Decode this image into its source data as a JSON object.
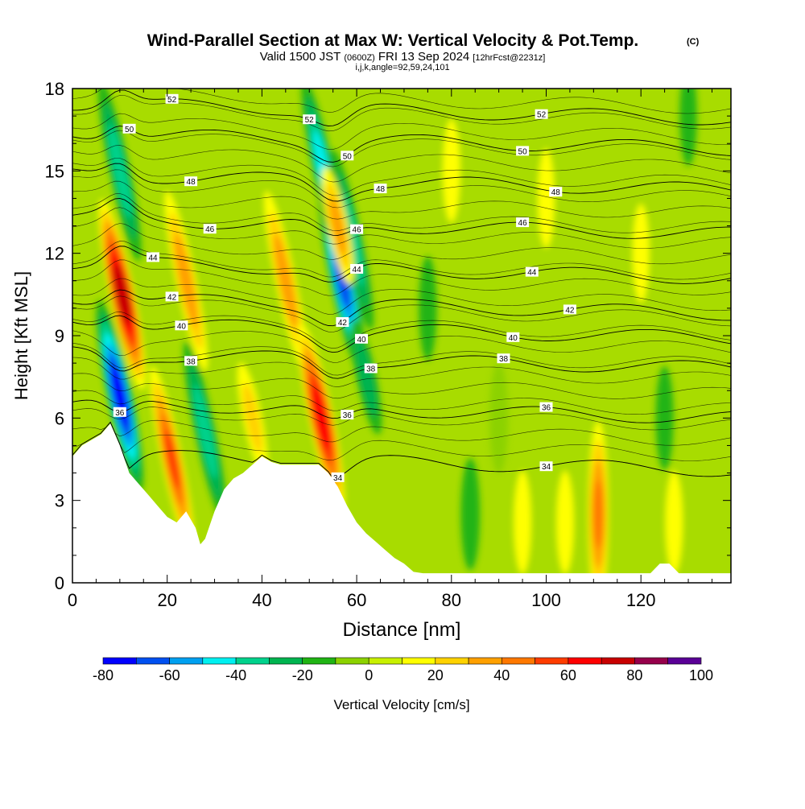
{
  "chart_data": {
    "type": "heatmap",
    "title": "Wind-Parallel Section at Max W: Vertical Velocity & Pot.Temp.",
    "title_mark": "(C)",
    "subtitle": {
      "main": "Valid 1500 JST",
      "utc": "(0600Z)",
      "date": "FRI 13 Sep 2024",
      "run": "[12hrFcst@2231z]"
    },
    "info_line": "i,j,k,angle=92,59,24,101",
    "xlabel": "Distance [nm]",
    "ylabel": "Height [Kft MSL]",
    "xlim": [
      0,
      139
    ],
    "ylim": [
      0,
      18
    ],
    "x_ticks": [
      "0",
      "20",
      "40",
      "60",
      "80",
      "100",
      "120"
    ],
    "y_ticks": [
      "0",
      "3",
      "6",
      "9",
      "12",
      "15",
      "18"
    ],
    "colorbar": {
      "label": "Vertical Velocity [cm/s]",
      "ticks": [
        "-80",
        "-60",
        "-40",
        "-20",
        "0",
        "20",
        "40",
        "60",
        "80",
        "100"
      ],
      "levels": [
        -80,
        -70,
        -60,
        -50,
        -40,
        -30,
        -20,
        -10,
        0,
        10,
        20,
        30,
        40,
        50,
        60,
        70,
        80,
        90,
        100
      ],
      "colors": [
        "#0000ff",
        "#0050f0",
        "#00a0f0",
        "#00f0f0",
        "#00d28c",
        "#00b450",
        "#20b414",
        "#8cd200",
        "#c8f000",
        "#ffff00",
        "#ffd200",
        "#ffa000",
        "#ff7800",
        "#ff3c00",
        "#ff0000",
        "#c80000",
        "#96004b",
        "#5a0096"
      ]
    },
    "terrain": [
      [
        0,
        4.6
      ],
      [
        2,
        5
      ],
      [
        4,
        5.2
      ],
      [
        6,
        5.4
      ],
      [
        8,
        5.8
      ],
      [
        10,
        5
      ],
      [
        12,
        4
      ],
      [
        14,
        3.6
      ],
      [
        16,
        3.2
      ],
      [
        18,
        2.8
      ],
      [
        20,
        2.4
      ],
      [
        22,
        2.2
      ],
      [
        24,
        2.6
      ],
      [
        26,
        2.0
      ],
      [
        27,
        1.4
      ],
      [
        28,
        1.6
      ],
      [
        30,
        2.6
      ],
      [
        32,
        3.4
      ],
      [
        34,
        3.8
      ],
      [
        36,
        4.0
      ],
      [
        38,
        4.3
      ],
      [
        40,
        4.6
      ],
      [
        42,
        4.4
      ],
      [
        44,
        4.3
      ],
      [
        46,
        4.3
      ],
      [
        48,
        4.3
      ],
      [
        50,
        4.3
      ],
      [
        52,
        4.3
      ],
      [
        54,
        4.0
      ],
      [
        56,
        3.5
      ],
      [
        58,
        2.8
      ],
      [
        60,
        2.2
      ],
      [
        62,
        1.8
      ],
      [
        64,
        1.5
      ],
      [
        66,
        1.2
      ],
      [
        68,
        0.9
      ],
      [
        70,
        0.7
      ],
      [
        72,
        0.4
      ],
      [
        74,
        0.35
      ],
      [
        80,
        0.35
      ],
      [
        120,
        0.35
      ],
      [
        122,
        0.35
      ],
      [
        124,
        0.7
      ],
      [
        126,
        0.7
      ],
      [
        128,
        0.35
      ],
      [
        139,
        0.35
      ]
    ],
    "vertical_velocity_features": [
      {
        "x": 10.5,
        "y": 10.5,
        "v": 75
      },
      {
        "x": 10,
        "y": 6.8,
        "v": -75
      },
      {
        "x": 10,
        "y": 15,
        "v": -35
      },
      {
        "x": 21,
        "y": 4.5,
        "v": 50
      },
      {
        "x": 24,
        "y": 11,
        "v": 35
      },
      {
        "x": 28,
        "y": 5.5,
        "v": -35
      },
      {
        "x": 45,
        "y": 11,
        "v": 35
      },
      {
        "x": 38,
        "y": 6,
        "v": 20
      },
      {
        "x": 52.5,
        "y": 6,
        "v": 65
      },
      {
        "x": 57,
        "y": 11,
        "v": -60
      },
      {
        "x": 53,
        "y": 15,
        "v": -45
      },
      {
        "x": 59,
        "y": 12.5,
        "v": -35
      },
      {
        "x": 56,
        "y": 13,
        "v": 30
      },
      {
        "x": 62,
        "y": 7.5,
        "v": -25
      },
      {
        "x": 111,
        "y": 2.5,
        "v": 40
      },
      {
        "x": 84,
        "y": 2.5,
        "v": -18
      },
      {
        "x": 95,
        "y": 2.2,
        "v": 12
      },
      {
        "x": 104,
        "y": 2.2,
        "v": 12
      },
      {
        "x": 127,
        "y": 2.2,
        "v": 12
      },
      {
        "x": 80,
        "y": 15,
        "v": 12
      },
      {
        "x": 100,
        "y": 14,
        "v": 10
      },
      {
        "x": 120,
        "y": 12,
        "v": 10
      },
      {
        "x": 75,
        "y": 10,
        "v": -12
      },
      {
        "x": 90,
        "y": 6,
        "v": -8
      },
      {
        "x": 125,
        "y": 6,
        "v": -12
      },
      {
        "x": 130,
        "y": 17,
        "v": -10
      }
    ],
    "theta_contours": [
      {
        "level": 34,
        "base": 4.5,
        "label": "34",
        "label_x": 56
      },
      {
        "level": 34,
        "base": 4.5,
        "label": "34",
        "label_x": 100
      },
      {
        "level": 36,
        "base": 6.4,
        "label": "36",
        "label_x": 10
      },
      {
        "level": 36,
        "base": 6.4,
        "label": "36",
        "label_x": 58
      },
      {
        "level": 36,
        "base": 6.4,
        "label": "36",
        "label_x": 100
      },
      {
        "level": 38,
        "base": 8.2,
        "label": "38",
        "label_x": 25
      },
      {
        "level": 38,
        "base": 8.2,
        "label": "38",
        "label_x": 63
      },
      {
        "level": 38,
        "base": 8.2,
        "label": "38",
        "label_x": 91
      },
      {
        "level": 40,
        "base": 9.3,
        "label": "40",
        "label_x": 23
      },
      {
        "level": 40,
        "base": 9.3,
        "label": "40",
        "label_x": 61
      },
      {
        "level": 40,
        "base": 9.3,
        "label": "40",
        "label_x": 93
      },
      {
        "level": 42,
        "base": 10.2,
        "label": "42",
        "label_x": 21
      },
      {
        "level": 42,
        "base": 10.2,
        "label": "42",
        "label_x": 57
      },
      {
        "level": 42,
        "base": 10.2,
        "label": "42",
        "label_x": 105
      },
      {
        "level": 44,
        "base": 11.5,
        "label": "44",
        "label_x": 17
      },
      {
        "level": 44,
        "base": 11.5,
        "label": "44",
        "label_x": 60
      },
      {
        "level": 44,
        "base": 11.5,
        "label": "44",
        "label_x": 97
      },
      {
        "level": 46,
        "base": 13.1,
        "label": "46",
        "label_x": 29
      },
      {
        "level": 46,
        "base": 13.1,
        "label": "46",
        "label_x": 60
      },
      {
        "level": 46,
        "base": 13.1,
        "label": "46",
        "label_x": 95
      },
      {
        "level": 48,
        "base": 14.7,
        "label": "48",
        "label_x": 25
      },
      {
        "level": 48,
        "base": 14.7,
        "label": "48",
        "label_x": 65
      },
      {
        "level": 48,
        "base": 14.7,
        "label": "48",
        "label_x": 102
      },
      {
        "level": 50,
        "base": 16.2,
        "label": "50",
        "label_x": 12
      },
      {
        "level": 50,
        "base": 16.2,
        "label": "50",
        "label_x": 58
      },
      {
        "level": 50,
        "base": 16.2,
        "label": "50",
        "label_x": 95
      },
      {
        "level": 52,
        "base": 17.3,
        "label": "52",
        "label_x": 21
      },
      {
        "level": 52,
        "base": 17.3,
        "label": "52",
        "label_x": 50
      },
      {
        "level": 52,
        "base": 17.3,
        "label": "52",
        "label_x": 99
      }
    ]
  }
}
